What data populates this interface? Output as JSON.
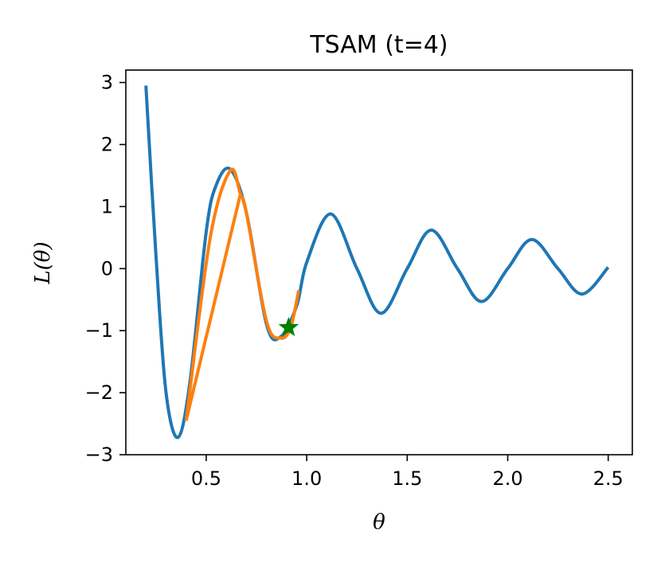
{
  "chart_data": {
    "type": "line",
    "title": "TSAM (t=4)",
    "xlabel": "θ",
    "ylabel": "L(θ)",
    "xlim": [
      0.1,
      2.62
    ],
    "ylim": [
      -3.0,
      3.2
    ],
    "xticks": [
      0.5,
      1.0,
      1.5,
      2.0,
      2.5
    ],
    "xtick_labels": [
      "0.5",
      "1.0",
      "1.5",
      "2.0",
      "2.5"
    ],
    "yticks": [
      -3,
      -2,
      -1,
      0,
      1,
      2,
      3
    ],
    "ytick_labels": [
      "−3",
      "−2",
      "−1",
      "0",
      "1",
      "2",
      "3"
    ],
    "grid": false,
    "series": [
      {
        "color": "#1f77b4",
        "x": [
          0.2,
          0.25,
          0.3,
          0.36,
          0.42,
          0.5,
          0.55,
          0.62,
          0.7,
          0.8,
          0.87,
          0.95,
          1.0,
          1.12,
          1.25,
          1.37,
          1.5,
          1.62,
          1.75,
          1.87,
          2.0,
          2.12,
          2.25,
          2.37,
          2.5
        ],
        "y": [
          2.95,
          0.2,
          -2.0,
          -2.72,
          -1.8,
          0.6,
          1.35,
          1.6,
          0.9,
          -0.9,
          -1.1,
          -0.6,
          0.1,
          0.88,
          0.0,
          -0.72,
          0.0,
          0.62,
          0.0,
          -0.53,
          0.0,
          0.47,
          0.0,
          -0.41,
          0.02
        ]
      },
      {
        "color": "#ff7f0e",
        "x": [
          0.4,
          0.52,
          0.62,
          0.67,
          0.7,
          0.8,
          0.87,
          0.92,
          0.96
        ],
        "y": [
          -2.45,
          0.5,
          1.58,
          1.2,
          0.9,
          -0.85,
          -1.12,
          -0.95,
          -0.35
        ]
      },
      {
        "color": "#ff7f0e",
        "x": [
          0.4,
          0.67
        ],
        "y": [
          -2.45,
          1.2
        ]
      }
    ],
    "marker": {
      "shape": "star",
      "color": "#008000",
      "x": 0.91,
      "y": -0.95
    }
  }
}
